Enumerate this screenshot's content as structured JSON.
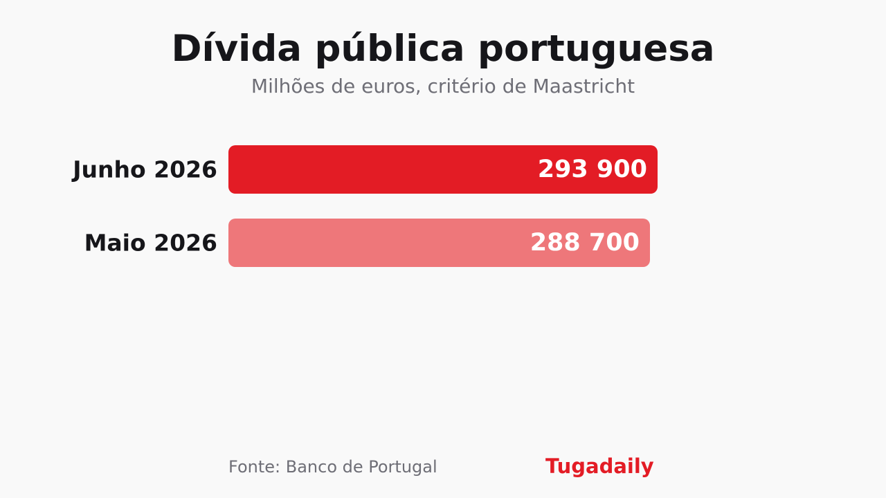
{
  "chart_data": {
    "type": "bar",
    "orientation": "horizontal",
    "title": "Dívida pública portuguesa",
    "subtitle": "Milhões de euros, critério de Maastricht",
    "categories": [
      "Junho 2026",
      "Maio 2026"
    ],
    "values": [
      293900,
      288700
    ],
    "value_labels": [
      "293 900",
      "288 700"
    ],
    "colors": [
      "#e31c25",
      "#ee777a"
    ],
    "grid": false,
    "legend": "none"
  },
  "footer": {
    "source": "Fonte: Banco de Portugal",
    "brand": "Tugadaily"
  }
}
